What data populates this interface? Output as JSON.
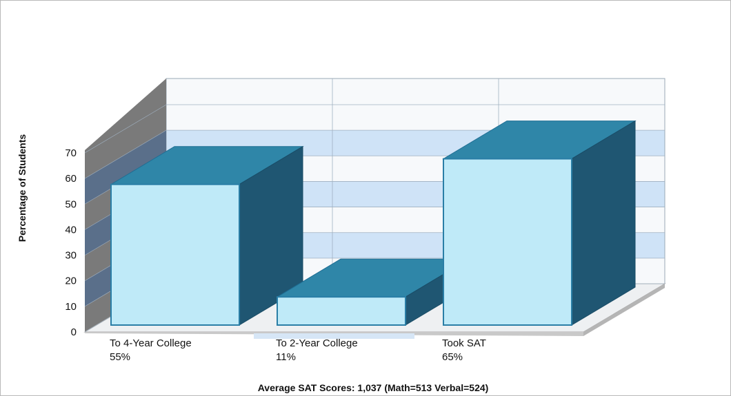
{
  "chart_data": {
    "type": "bar",
    "title": "",
    "ylabel": "Percentage of Students",
    "xlabel": "",
    "ylim": [
      0,
      70
    ],
    "yticks": [
      0,
      10,
      20,
      30,
      40,
      50,
      60,
      70
    ],
    "ytick_labels": [
      "0",
      "10",
      "20",
      "30",
      "40",
      "50",
      "60",
      "70"
    ],
    "categories": [
      "To 4-Year College",
      "To 2-Year College",
      "Took SAT"
    ],
    "values": [
      55,
      11,
      65
    ],
    "value_labels": [
      "55%",
      "11%",
      "65%"
    ],
    "footnote": "Average SAT Scores: 1,037 (Math=513 Verbal=524)",
    "three_d": true,
    "grid": true,
    "colors": {
      "bar_front": "#bfeaf8",
      "bar_top": "#2f86a8",
      "bar_side": "#1f5672",
      "bar_edge": "#2a7ea6",
      "wall_band": "#cfe3f7",
      "wall_plain": "#f7f9fb",
      "left_wall_dark": "#7a7a7a",
      "left_wall_band": "#5a6f8a",
      "floor": "#eef0f2",
      "floor_edge": "#a9a9a9",
      "category_band": "#d6e6f6"
    }
  }
}
